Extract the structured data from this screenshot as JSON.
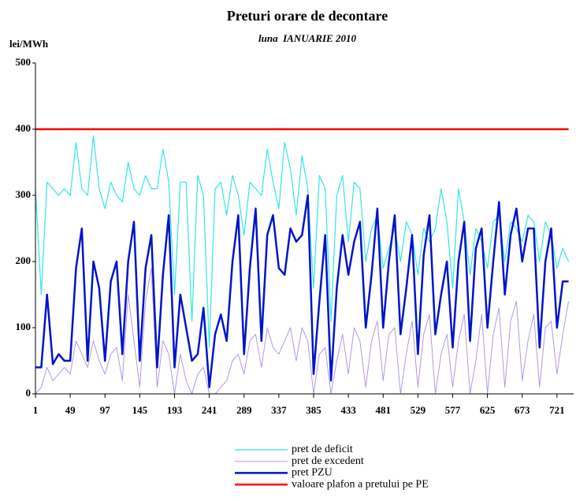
{
  "chart_data": {
    "type": "line",
    "title": "Preturi orare de decontare",
    "subtitle": "luna  IANUARIE 2010",
    "y_label": "lei/MWh",
    "x": [
      1,
      9,
      17,
      25,
      33,
      41,
      49,
      57,
      65,
      73,
      81,
      89,
      97,
      105,
      113,
      121,
      129,
      137,
      145,
      153,
      161,
      169,
      177,
      185,
      193,
      201,
      209,
      217,
      225,
      233,
      241,
      249,
      257,
      265,
      273,
      281,
      289,
      297,
      305,
      313,
      321,
      329,
      337,
      345,
      353,
      361,
      369,
      377,
      385,
      393,
      401,
      409,
      417,
      425,
      433,
      441,
      449,
      457,
      465,
      473,
      481,
      489,
      497,
      505,
      513,
      521,
      529,
      537,
      545,
      553,
      561,
      569,
      577,
      585,
      593,
      601,
      609,
      617,
      625,
      633,
      641,
      649,
      657,
      665,
      673,
      681,
      689,
      697,
      705,
      713,
      721,
      729,
      737
    ],
    "xlim": [
      1,
      744
    ],
    "xticks": [
      1,
      49,
      97,
      145,
      193,
      241,
      289,
      337,
      385,
      433,
      481,
      529,
      577,
      625,
      673,
      721
    ],
    "ylim": [
      0,
      500
    ],
    "yticks": [
      0,
      100,
      200,
      300,
      400,
      500
    ],
    "grid": false,
    "series": [
      {
        "name": "pret de deficit",
        "color": "#33e6e6",
        "width": 1.2,
        "values": [
          310,
          150,
          320,
          310,
          300,
          310,
          300,
          380,
          310,
          300,
          390,
          310,
          280,
          320,
          300,
          290,
          350,
          310,
          300,
          330,
          310,
          310,
          370,
          320,
          150,
          320,
          320,
          110,
          330,
          300,
          70,
          310,
          320,
          270,
          330,
          300,
          240,
          320,
          310,
          300,
          370,
          320,
          280,
          380,
          340,
          270,
          360,
          310,
          160,
          330,
          310,
          110,
          300,
          330,
          230,
          320,
          310,
          200,
          250,
          270,
          190,
          220,
          250,
          200,
          260,
          240,
          180,
          250,
          230,
          250,
          310,
          260,
          160,
          310,
          260,
          180,
          250,
          230,
          190,
          260,
          270,
          200,
          260,
          250,
          230,
          270,
          260,
          200,
          260,
          240,
          190,
          220,
          200
        ]
      },
      {
        "name": "pret de excedent",
        "color": "#b496e6",
        "width": 1,
        "values": [
          0,
          10,
          40,
          20,
          30,
          40,
          30,
          80,
          60,
          40,
          80,
          50,
          30,
          60,
          70,
          20,
          150,
          80,
          10,
          140,
          190,
          10,
          80,
          60,
          0,
          60,
          20,
          0,
          30,
          40,
          0,
          0,
          10,
          20,
          50,
          60,
          30,
          80,
          90,
          40,
          100,
          70,
          60,
          80,
          100,
          50,
          100,
          80,
          0,
          60,
          70,
          0,
          50,
          90,
          30,
          100,
          80,
          10,
          80,
          110,
          20,
          90,
          100,
          0,
          60,
          110,
          10,
          90,
          120,
          0,
          60,
          90,
          10,
          80,
          120,
          0,
          50,
          120,
          0,
          90,
          130,
          10,
          110,
          140,
          20,
          80,
          120,
          10,
          100,
          110,
          30,
          90,
          140
        ]
      },
      {
        "name": "pret PZU",
        "color": "#0014c8",
        "width": 2.5,
        "values": [
          40,
          40,
          150,
          45,
          60,
          50,
          50,
          190,
          250,
          50,
          200,
          160,
          50,
          170,
          200,
          60,
          200,
          260,
          50,
          190,
          240,
          40,
          180,
          270,
          40,
          150,
          100,
          50,
          60,
          130,
          10,
          90,
          120,
          80,
          200,
          270,
          60,
          190,
          280,
          80,
          240,
          270,
          190,
          180,
          250,
          230,
          240,
          300,
          30,
          140,
          240,
          20,
          160,
          240,
          180,
          230,
          260,
          100,
          180,
          280,
          100,
          200,
          270,
          90,
          160,
          240,
          60,
          210,
          270,
          90,
          150,
          200,
          70,
          200,
          260,
          80,
          220,
          250,
          100,
          200,
          290,
          150,
          240,
          280,
          200,
          250,
          250,
          70,
          200,
          250,
          100,
          170,
          170
        ]
      },
      {
        "name": "valoare plafon a pretului pe PE",
        "color": "#ff0000",
        "width": 2.5,
        "values": [
          400,
          400,
          400,
          400,
          400,
          400,
          400,
          400,
          400,
          400,
          400,
          400,
          400,
          400,
          400,
          400,
          400,
          400,
          400,
          400,
          400,
          400,
          400,
          400,
          400,
          400,
          400,
          400,
          400,
          400,
          400,
          400,
          400,
          400,
          400,
          400,
          400,
          400,
          400,
          400,
          400,
          400,
          400,
          400,
          400,
          400,
          400,
          400,
          400,
          400,
          400,
          400,
          400,
          400,
          400,
          400,
          400,
          400,
          400,
          400,
          400,
          400,
          400,
          400,
          400,
          400,
          400,
          400,
          400,
          400,
          400,
          400,
          400,
          400,
          400,
          400,
          400,
          400,
          400,
          400,
          400,
          400,
          400,
          400,
          400,
          400,
          400,
          400,
          400,
          400,
          400,
          400,
          400
        ]
      }
    ]
  }
}
